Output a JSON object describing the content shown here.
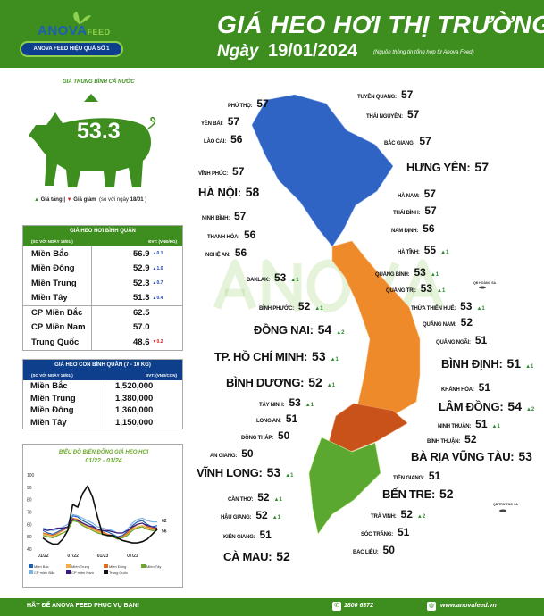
{
  "header": {
    "logo": {
      "brand": "ANOVA",
      "brand_suffix": "FEED",
      "tagline": "ANOVA FEED HIỆU QUẢ SỐ 1"
    },
    "title": "GIÁ HEO HƠI THỊ TRƯỜNG",
    "date_label": "Ngày",
    "date": "19/01/2024",
    "source": "(Nguồn thông tin tổng hợp từ Anova Feed)"
  },
  "national": {
    "title": "GIÁ TRUNG BÌNH CẢ NƯỚC",
    "value": "53.3",
    "trend": "up",
    "legend_up": "Giá tăng",
    "legend_sep": "|",
    "legend_down": "Giá giảm",
    "compare": "(so với ngày",
    "compare_date": "18/01",
    "compare_end": ")"
  },
  "live_price_table": {
    "title": "GIÁ HEO HƠI BÌNH QUÂN",
    "subtitle": "(SO VỚI NGÀY 18/01 )",
    "unit": "ĐVT: (VNĐ/KG)",
    "rows": [
      {
        "region": "Miền Bắc",
        "price": "56.9",
        "change": "▲0.1"
      },
      {
        "region": "Miền Đông",
        "price": "52.9",
        "change": "▲1.0"
      },
      {
        "region": "Miền Trung",
        "price": "52.3",
        "change": "▲0.7"
      },
      {
        "region": "Miền Tây",
        "price": "51.3",
        "change": "▲0.4"
      },
      {
        "region": "CP Miền Bắc",
        "price": "62.5",
        "change": ""
      },
      {
        "region": "CP Miền Nam",
        "price": "57.0",
        "change": ""
      },
      {
        "region": "Trung Quốc",
        "price": "48.6",
        "change": "▼0.2"
      }
    ]
  },
  "piglet_table": {
    "title": "GIÁ HEO CON BÌNH QUÂN (7 - 10 KG)",
    "subtitle": "(SO VỚI NGÀY 18/01 )",
    "unit": "ĐVT: (VNĐ/CON)",
    "rows": [
      {
        "region": "Miền Bắc",
        "price": "1,520,000"
      },
      {
        "region": "Miền Trung",
        "price": "1,380,000"
      },
      {
        "region": "Miền Đông",
        "price": "1,360,000"
      },
      {
        "region": "Miền Tây",
        "price": "1,150,000"
      }
    ]
  },
  "chart_data": {
    "type": "line",
    "title": "BIỂU ĐỒ BIẾN ĐỘNG GIÁ HEO HƠI",
    "subtitle": "01/22 - 01/24",
    "ylim": [
      40,
      100
    ],
    "yticks": [
      "100",
      "90",
      "80",
      "70",
      "60",
      "50",
      "40"
    ],
    "xticks": [
      "01/22",
      "07/22",
      "01/23",
      "07/23"
    ],
    "end_labels": [
      "62",
      "56"
    ],
    "grid": false,
    "legend_position": "bottom",
    "x": [
      "01/22",
      "02/22",
      "03/22",
      "04/22",
      "05/22",
      "06/22",
      "07/22",
      "08/22",
      "09/22",
      "10/22",
      "11/22",
      "12/22",
      "01/23",
      "02/23",
      "03/23",
      "04/23",
      "05/23",
      "06/23",
      "07/23",
      "08/23",
      "09/23",
      "10/23",
      "11/23",
      "12/23"
    ],
    "series": [
      {
        "name": "Miền Bắc",
        "color": "#1f5fb0",
        "values": [
          55,
          53,
          52,
          54,
          56,
          58,
          67,
          66,
          63,
          61,
          59,
          56,
          55,
          54,
          52,
          50,
          51,
          54,
          59,
          62,
          63,
          60,
          58,
          59
        ]
      },
      {
        "name": "Miền Trung",
        "color": "#f0b040",
        "values": [
          52,
          51,
          50,
          52,
          53,
          55,
          63,
          62,
          60,
          58,
          56,
          54,
          53,
          52,
          51,
          49,
          50,
          52,
          56,
          58,
          59,
          57,
          56,
          56
        ]
      },
      {
        "name": "Miền Đông",
        "color": "#e06a1a",
        "values": [
          53,
          52,
          51,
          53,
          55,
          57,
          65,
          64,
          61,
          59,
          57,
          55,
          54,
          52,
          51,
          49,
          50,
          53,
          57,
          60,
          61,
          58,
          57,
          57
        ]
      },
      {
        "name": "Miền Tây",
        "color": "#6aa62b",
        "values": [
          51,
          50,
          49,
          51,
          53,
          55,
          63,
          62,
          59,
          57,
          55,
          53,
          52,
          51,
          50,
          48,
          49,
          51,
          55,
          57,
          58,
          56,
          55,
          55
        ]
      },
      {
        "name": "CP miền Bắc",
        "color": "#7ab4e6",
        "values": [
          57,
          56,
          55,
          56,
          58,
          60,
          68,
          67,
          65,
          63,
          61,
          58,
          57,
          56,
          55,
          53,
          53,
          56,
          61,
          64,
          65,
          63,
          62,
          62
        ]
      },
      {
        "name": "CP miền Nam",
        "color": "#3a1a7a",
        "values": [
          56,
          55,
          56,
          57,
          57,
          58,
          64,
          63,
          61,
          59,
          58,
          56,
          55,
          55,
          54,
          53,
          53,
          55,
          58,
          60,
          61,
          59,
          58,
          57
        ]
      },
      {
        "name": "Trung Quốc",
        "color": "#111111",
        "values": [
          49,
          46,
          44,
          44,
          48,
          55,
          76,
          74,
          85,
          91,
          82,
          66,
          52,
          51,
          51,
          49,
          47,
          46,
          45,
          45,
          46,
          48,
          52,
          56
        ]
      }
    ]
  },
  "map": {
    "islands": [
      "QĐ HOÀNG SA",
      "QĐ TRƯỜNG SA"
    ],
    "provinces": [
      {
        "name": "Phú Thọ:",
        "price": "57",
        "change": ""
      },
      {
        "name": "Yên Bái:",
        "price": "57",
        "change": ""
      },
      {
        "name": "Lào Cai:",
        "price": "56",
        "change": ""
      },
      {
        "name": "Vĩnh Phúc:",
        "price": "57",
        "change": ""
      },
      {
        "name": "Hà Nội:",
        "price": "58",
        "change": ""
      },
      {
        "name": "Ninh Bình:",
        "price": "57",
        "change": ""
      },
      {
        "name": "Thanh Hóa:",
        "price": "56",
        "change": ""
      },
      {
        "name": "Nghệ An:",
        "price": "56",
        "change": ""
      },
      {
        "name": "Tuyên Quang:",
        "price": "57",
        "change": ""
      },
      {
        "name": "Thái Nguyên:",
        "price": "57",
        "change": ""
      },
      {
        "name": "Bắc Giang:",
        "price": "57",
        "change": ""
      },
      {
        "name": "Hưng Yên:",
        "price": "57",
        "change": ""
      },
      {
        "name": "Hà Nam:",
        "price": "57",
        "change": ""
      },
      {
        "name": "Thái Bình:",
        "price": "57",
        "change": ""
      },
      {
        "name": "Nam Định:",
        "price": "56",
        "change": ""
      },
      {
        "name": "Hà Tĩnh:",
        "price": "55",
        "change": "▲1"
      },
      {
        "name": "Quảng Bình:",
        "price": "53",
        "change": "▲1"
      },
      {
        "name": "Quảng Trị:",
        "price": "53",
        "change": "▲1"
      },
      {
        "name": "Thừa Thiên Huế:",
        "price": "53",
        "change": "▲1"
      },
      {
        "name": "Quảng Nam:",
        "price": "52",
        "change": ""
      },
      {
        "name": "Quảng Ngãi:",
        "price": "51",
        "change": ""
      },
      {
        "name": "Bình Định:",
        "price": "51",
        "change": "▲1"
      },
      {
        "name": "Khánh Hòa:",
        "price": "51",
        "change": ""
      },
      {
        "name": "Lâm Đồng:",
        "price": "54",
        "change": "▲2"
      },
      {
        "name": "Ninh Thuận:",
        "price": "51",
        "change": "▲1"
      },
      {
        "name": "Bình Thuận:",
        "price": "52",
        "change": ""
      },
      {
        "name": "Bà Rịa Vũng Tàu:",
        "price": "53",
        "change": ""
      },
      {
        "name": "Tiền Giang:",
        "price": "51",
        "change": ""
      },
      {
        "name": "Bến Tre:",
        "price": "52",
        "change": ""
      },
      {
        "name": "Trà Vinh:",
        "price": "52",
        "change": "▲2"
      },
      {
        "name": "Sóc Trăng:",
        "price": "51",
        "change": ""
      },
      {
        "name": "Bạc Liêu:",
        "price": "50",
        "change": ""
      },
      {
        "name": "Daklak:",
        "price": "53",
        "change": "▲1"
      },
      {
        "name": "Bình Phước:",
        "price": "52",
        "change": "▲1"
      },
      {
        "name": "Đồng Nai:",
        "price": "54",
        "change": "▲2"
      },
      {
        "name": "TP. Hồ Chí Minh:",
        "price": "53",
        "change": "▲1"
      },
      {
        "name": "Bình Dương:",
        "price": "52",
        "change": "▲1"
      },
      {
        "name": "Tây Ninh:",
        "price": "53",
        "change": "▲1"
      },
      {
        "name": "Long An:",
        "price": "51",
        "change": ""
      },
      {
        "name": "Đồng Tháp:",
        "price": "50",
        "change": ""
      },
      {
        "name": "An Giang:",
        "price": "50",
        "change": ""
      },
      {
        "name": "Vĩnh Long:",
        "price": "53",
        "change": "▲1"
      },
      {
        "name": "Cần Thơ:",
        "price": "52",
        "change": "▲1"
      },
      {
        "name": "Hậu Giang:",
        "price": "52",
        "change": "▲1"
      },
      {
        "name": "Kiên Giang:",
        "price": "51",
        "change": ""
      },
      {
        "name": "Cà Mau:",
        "price": "52",
        "change": ""
      }
    ]
  },
  "watermark": "ANOVA FEED",
  "footer": {
    "slogan": "HÃY ĐỂ ANOVA FEED PHỤC VỤ BẠN!",
    "phone": "1800 6372",
    "website": "www.anovafeed.vn"
  },
  "colors": {
    "brand_green": "#3e8e1f",
    "north": "#2f63c4",
    "central": "#ef8a2a",
    "southeast": "#c9521a",
    "mekong": "#5aa830",
    "piglet_header": "#0d3f8c",
    "increase": "#2e8b2e",
    "decrease": "#d01b1b"
  }
}
